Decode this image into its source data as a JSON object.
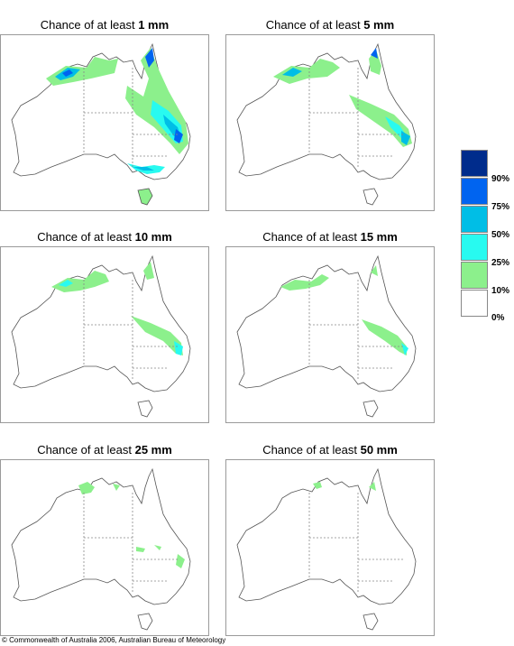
{
  "panels": [
    {
      "title_prefix": "Chance of at least",
      "amount": "1 mm"
    },
    {
      "title_prefix": "Chance of at least",
      "amount": "5 mm"
    },
    {
      "title_prefix": "Chance of at least",
      "amount": "10 mm"
    },
    {
      "title_prefix": "Chance of at least",
      "amount": "15 mm"
    },
    {
      "title_prefix": "Chance of at least",
      "amount": "25 mm"
    },
    {
      "title_prefix": "Chance of at least",
      "amount": "50 mm"
    }
  ],
  "legend": {
    "labels": [
      "90%",
      "75%",
      "50%",
      "25%",
      "10%",
      "0%"
    ],
    "colors": [
      "#002c8c",
      "#0064f0",
      "#00bee6",
      "#28faf0",
      "#8cf08c",
      "#ffffff"
    ]
  },
  "copyright": "© Commonwealth of Australia 2006, Australian Bureau of Meteorology"
}
